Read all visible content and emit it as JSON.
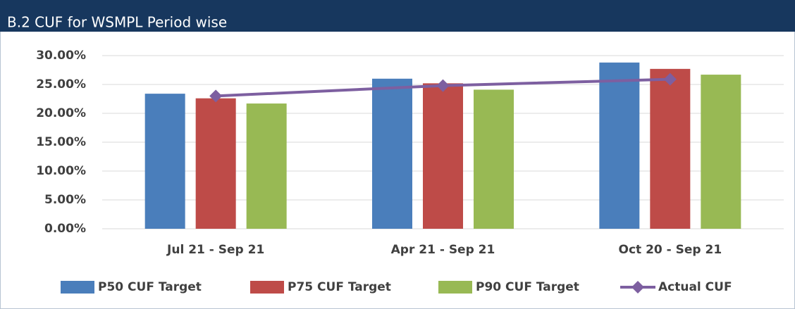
{
  "chart_data": {
    "type": "bar",
    "title": "B.2 CUF for WSMPL Period wise",
    "categories": [
      "Jul 21 - Sep 21",
      "Apr 21 - Sep 21",
      "Oct 20 - Sep 21"
    ],
    "series": [
      {
        "name": "P50 CUF Target",
        "type": "bar",
        "color": "#4a7ebb",
        "values": [
          23.4,
          26.0,
          28.8
        ]
      },
      {
        "name": "P75 CUF Target",
        "type": "bar",
        "color": "#be4b48",
        "values": [
          22.6,
          25.2,
          27.7
        ]
      },
      {
        "name": "P90 CUF Target",
        "type": "bar",
        "color": "#98b954",
        "values": [
          21.7,
          24.1,
          26.7
        ]
      },
      {
        "name": "Actual CUF",
        "type": "line",
        "color": "#7d5fa0",
        "values": [
          23.0,
          24.8,
          25.9
        ]
      }
    ],
    "ylim": [
      0,
      30
    ],
    "yticks": [
      {
        "value": 0,
        "label": "0.00%"
      },
      {
        "value": 5,
        "label": "5.00%"
      },
      {
        "value": 10,
        "label": "10.00%"
      },
      {
        "value": 15,
        "label": "15.00%"
      },
      {
        "value": 20,
        "label": "20.00%"
      },
      {
        "value": 25,
        "label": "25.00%"
      },
      {
        "value": 30,
        "label": "30.00%"
      }
    ],
    "grid": true,
    "legend": "bottom"
  }
}
